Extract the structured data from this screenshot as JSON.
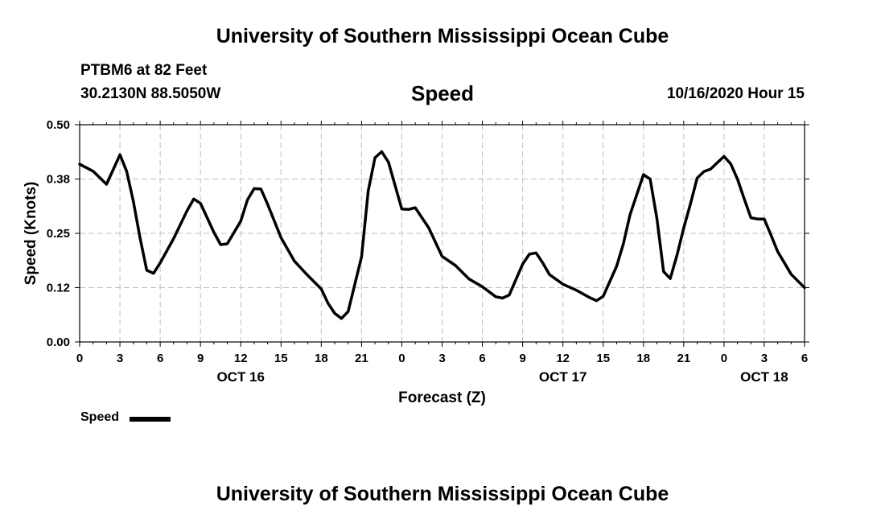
{
  "header": {
    "top_title": "University of Southern Mississippi Ocean Cube",
    "station": "PTBM6 at 82 Feet",
    "coords": "30.2130N 88.5050W",
    "chart_heading": "Speed",
    "datetime": "10/16/2020 Hour 15",
    "bottom_title": "University of Southern Mississippi Ocean Cube"
  },
  "legend": {
    "label": "Speed"
  },
  "colors": {
    "line": "#000000",
    "grid": "#bfbfbf"
  },
  "chart_data": {
    "type": "line",
    "title": "Speed",
    "xlabel": "Forecast (Z)",
    "ylabel": "Speed (Knots)",
    "xlim": [
      0,
      54
    ],
    "ylim": [
      0,
      0.5
    ],
    "grid": true,
    "legend_position": "bottom-left",
    "y_ticks": [
      "0.00",
      "0.12",
      "0.25",
      "0.38",
      "0.50"
    ],
    "x_ticks": [
      "0",
      "3",
      "6",
      "9",
      "12",
      "15",
      "18",
      "21",
      "0",
      "3",
      "6",
      "9",
      "12",
      "15",
      "18",
      "21",
      "0",
      "3",
      "6"
    ],
    "date_labels": [
      {
        "label": "OCT 16",
        "at_hour": 12
      },
      {
        "label": "OCT 17",
        "at_hour": 36
      },
      {
        "label": "OCT 18",
        "at_hour": 51
      }
    ],
    "series": [
      {
        "name": "Speed",
        "x": [
          0,
          1,
          2,
          3,
          3.5,
          4,
          4.5,
          5,
          5.5,
          6,
          7,
          8,
          8.5,
          9,
          9.5,
          10,
          10.5,
          11,
          12,
          12.5,
          13,
          13.5,
          14,
          15,
          16,
          17,
          18,
          18.5,
          19,
          19.5,
          20,
          21,
          21.5,
          22,
          22.5,
          23,
          24,
          24.5,
          25,
          26,
          27,
          28,
          29,
          30,
          31,
          31.5,
          32,
          33,
          33.5,
          34,
          34.5,
          35,
          36,
          37,
          38,
          38.5,
          39,
          40,
          40.5,
          41,
          42,
          42.5,
          43,
          43.5,
          44,
          44.5,
          45,
          45.5,
          46,
          46.5,
          47,
          48,
          48.5,
          49,
          49.5,
          50,
          50.5,
          51,
          51.5,
          52,
          52.5,
          53,
          54
        ],
        "y": [
          0.409,
          0.393,
          0.363,
          0.431,
          0.393,
          0.324,
          0.239,
          0.165,
          0.158,
          0.182,
          0.238,
          0.302,
          0.329,
          0.319,
          0.286,
          0.252,
          0.224,
          0.226,
          0.278,
          0.327,
          0.353,
          0.352,
          0.317,
          0.24,
          0.186,
          0.153,
          0.122,
          0.089,
          0.066,
          0.054,
          0.07,
          0.196,
          0.348,
          0.424,
          0.438,
          0.414,
          0.306,
          0.305,
          0.309,
          0.263,
          0.197,
          0.176,
          0.145,
          0.127,
          0.104,
          0.101,
          0.108,
          0.179,
          0.202,
          0.205,
          0.182,
          0.155,
          0.133,
          0.119,
          0.102,
          0.095,
          0.105,
          0.174,
          0.226,
          0.293,
          0.385,
          0.375,
          0.284,
          0.162,
          0.146,
          0.2,
          0.262,
          0.318,
          0.377,
          0.392,
          0.398,
          0.427,
          0.41,
          0.375,
          0.33,
          0.286,
          0.283,
          0.283,
          0.246,
          0.208,
          0.182,
          0.156,
          0.125
        ]
      }
    ]
  }
}
